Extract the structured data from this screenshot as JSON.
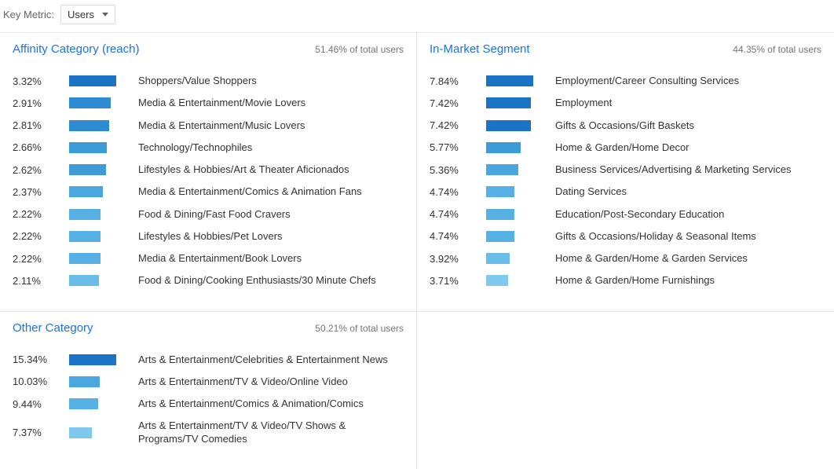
{
  "topbar": {
    "key_metric_label": "Key Metric:",
    "selected_metric": "Users"
  },
  "barMaxWidth": 60,
  "panels": {
    "affinity": {
      "title": "Affinity Category (reach)",
      "subtitle": "51.46% of total users",
      "maxPercent": 3.32,
      "rows": [
        {
          "pct": "3.32%",
          "val": 3.32,
          "color": "#1a73c4",
          "label": "Shoppers/Value Shoppers"
        },
        {
          "pct": "2.91%",
          "val": 2.91,
          "color": "#2e8bd1",
          "label": "Media & Entertainment/Movie Lovers"
        },
        {
          "pct": "2.81%",
          "val": 2.81,
          "color": "#2e8bd1",
          "label": "Media & Entertainment/Music Lovers"
        },
        {
          "pct": "2.66%",
          "val": 2.66,
          "color": "#3f9ad8",
          "label": "Technology/Technophiles"
        },
        {
          "pct": "2.62%",
          "val": 2.62,
          "color": "#3f9ad8",
          "label": "Lifestyles & Hobbies/Art & Theater Aficionados"
        },
        {
          "pct": "2.37%",
          "val": 2.37,
          "color": "#4aa6df",
          "label": "Media & Entertainment/Comics & Animation Fans"
        },
        {
          "pct": "2.22%",
          "val": 2.22,
          "color": "#57b0e3",
          "label": "Food & Dining/Fast Food Cravers"
        },
        {
          "pct": "2.22%",
          "val": 2.22,
          "color": "#57b0e3",
          "label": "Lifestyles & Hobbies/Pet Lovers"
        },
        {
          "pct": "2.22%",
          "val": 2.22,
          "color": "#57b0e3",
          "label": "Media & Entertainment/Book Lovers"
        },
        {
          "pct": "2.11%",
          "val": 2.11,
          "color": "#6bbde9",
          "label": "Food & Dining/Cooking Enthusiasts/30 Minute Chefs"
        }
      ]
    },
    "inmarket": {
      "title": "In-Market Segment",
      "subtitle": "44.35% of total users",
      "maxPercent": 7.84,
      "rows": [
        {
          "pct": "7.84%",
          "val": 7.84,
          "color": "#1a73c4",
          "label": "Employment/Career Consulting Services"
        },
        {
          "pct": "7.42%",
          "val": 7.42,
          "color": "#1a73c4",
          "label": "Employment"
        },
        {
          "pct": "7.42%",
          "val": 7.42,
          "color": "#1a73c4",
          "label": "Gifts & Occasions/Gift Baskets"
        },
        {
          "pct": "5.77%",
          "val": 5.77,
          "color": "#3f9ad8",
          "label": "Home & Garden/Home Decor"
        },
        {
          "pct": "5.36%",
          "val": 5.36,
          "color": "#4aa6df",
          "label": "Business Services/Advertising & Marketing Services"
        },
        {
          "pct": "4.74%",
          "val": 4.74,
          "color": "#57b0e3",
          "label": "Dating Services"
        },
        {
          "pct": "4.74%",
          "val": 4.74,
          "color": "#57b0e3",
          "label": "Education/Post-Secondary Education"
        },
        {
          "pct": "4.74%",
          "val": 4.74,
          "color": "#57b0e3",
          "label": "Gifts & Occasions/Holiday & Seasonal Items"
        },
        {
          "pct": "3.92%",
          "val": 3.92,
          "color": "#6bbde9",
          "label": "Home & Garden/Home & Garden Services"
        },
        {
          "pct": "3.71%",
          "val": 3.71,
          "color": "#7fc9ee",
          "label": "Home & Garden/Home Furnishings"
        }
      ]
    },
    "other": {
      "title": "Other Category",
      "subtitle": "50.21% of total users",
      "maxPercent": 15.34,
      "rows": [
        {
          "pct": "15.34%",
          "val": 15.34,
          "color": "#1a73c4",
          "label": "Arts & Entertainment/Celebrities & Entertainment News"
        },
        {
          "pct": "10.03%",
          "val": 10.03,
          "color": "#4aa6df",
          "label": "Arts & Entertainment/TV & Video/Online Video"
        },
        {
          "pct": "9.44%",
          "val": 9.44,
          "color": "#57b0e3",
          "label": "Arts & Entertainment/Comics & Animation/Comics"
        },
        {
          "pct": "7.37%",
          "val": 7.37,
          "color": "#7fc9ee",
          "label": "Arts & Entertainment/TV & Video/TV Shows & Programs/TV Comedies"
        }
      ]
    }
  }
}
